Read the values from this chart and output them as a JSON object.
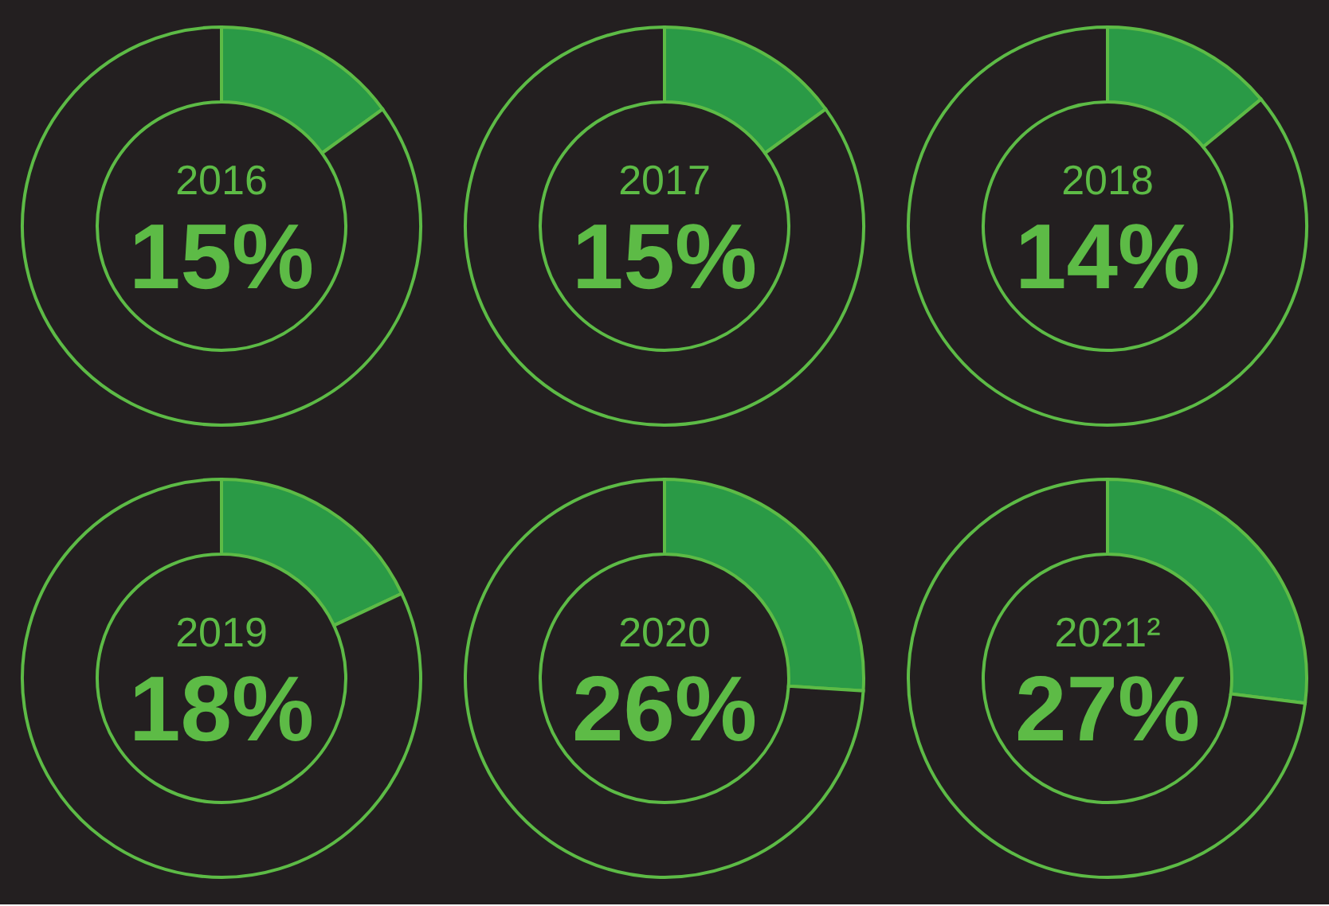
{
  "chart_data": [
    {
      "type": "donut",
      "title": "2016",
      "categories": [
        null,
        null
      ],
      "values": [
        15,
        85
      ],
      "colors": [
        "#2a9a46",
        "#231f20"
      ],
      "annotations": [
        "15%"
      ],
      "legend": false
    },
    {
      "type": "donut",
      "title": "2017",
      "categories": [
        null,
        null
      ],
      "values": [
        15,
        85
      ],
      "colors": [
        "#2a9a46",
        "#231f20"
      ],
      "annotations": [
        "15%"
      ],
      "legend": false
    },
    {
      "type": "donut",
      "title": "2018",
      "categories": [
        null,
        null
      ],
      "values": [
        14,
        86
      ],
      "colors": [
        "#2a9a46",
        "#231f20"
      ],
      "annotations": [
        "14%"
      ],
      "legend": false
    },
    {
      "type": "donut",
      "title": "2019",
      "categories": [
        null,
        null
      ],
      "values": [
        18,
        82
      ],
      "colors": [
        "#2a9a46",
        "#231f20"
      ],
      "annotations": [
        "18%"
      ],
      "legend": false
    },
    {
      "type": "donut",
      "title": "2020",
      "categories": [
        null,
        null
      ],
      "values": [
        26,
        74
      ],
      "colors": [
        "#2a9a46",
        "#231f20"
      ],
      "annotations": [
        "26%"
      ],
      "legend": false
    },
    {
      "type": "donut",
      "title": "2021²",
      "categories": [
        null,
        null
      ],
      "values": [
        27,
        73
      ],
      "colors": [
        "#2a9a46",
        "#231f20"
      ],
      "annotations": [
        "27%"
      ],
      "legend": false
    }
  ]
}
